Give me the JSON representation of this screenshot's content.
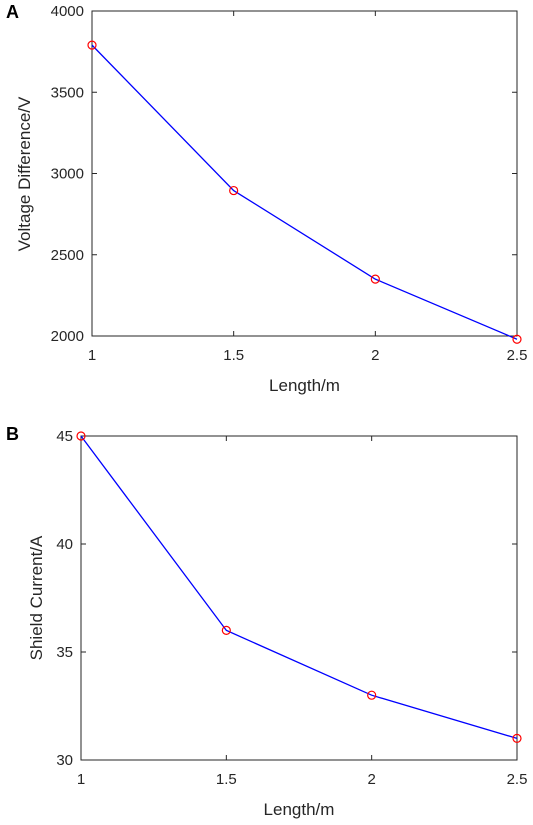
{
  "chart_data": [
    {
      "panel": "A",
      "type": "line",
      "title": "",
      "xlabel": "Length/m",
      "ylabel": "Voltage Difference/V",
      "xlim": [
        1,
        2.5
      ],
      "ylim": [
        2000,
        4000
      ],
      "xticks": [
        "1",
        "1.5",
        "2",
        "2.5"
      ],
      "yticks": [
        "2000",
        "2500",
        "3000",
        "3500",
        "4000"
      ],
      "grid": false,
      "line_color": "#0000ff",
      "marker_color": "#ff0000",
      "marker": "circle",
      "series": [
        {
          "x": [
            1,
            1.5,
            2,
            2.5
          ],
          "values": [
            3790,
            2895,
            2350,
            1980
          ]
        }
      ]
    },
    {
      "panel": "B",
      "type": "line",
      "title": "",
      "xlabel": "Length/m",
      "ylabel": "Shield Current/A",
      "xlim": [
        1,
        2.5
      ],
      "ylim": [
        30,
        45
      ],
      "xticks": [
        "1",
        "1.5",
        "2",
        "2.5"
      ],
      "yticks": [
        "30",
        "35",
        "40",
        "45"
      ],
      "grid": false,
      "line_color": "#0000ff",
      "marker_color": "#ff0000",
      "marker": "circle",
      "series": [
        {
          "x": [
            1,
            1.5,
            2,
            2.5
          ],
          "values": [
            45,
            36,
            33,
            31
          ]
        }
      ]
    }
  ]
}
